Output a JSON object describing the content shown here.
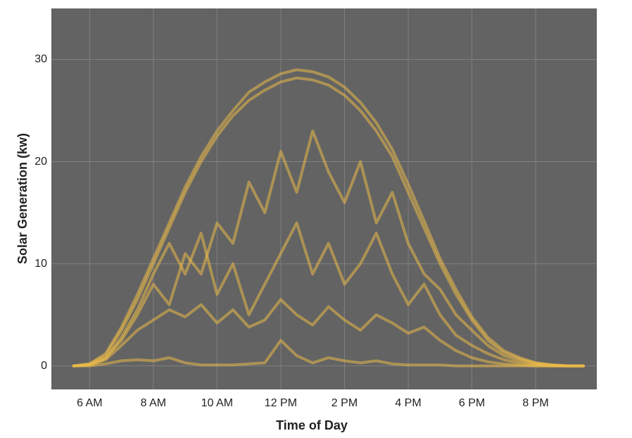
{
  "chart_data": {
    "type": "line",
    "x_label": "Time of Day",
    "y_label": "Solar Generation (kw)",
    "x": [
      5.5,
      6,
      6.5,
      7,
      7.5,
      8,
      8.5,
      9,
      9.5,
      10,
      10.5,
      11,
      11.5,
      12,
      12.5,
      13,
      13.5,
      14,
      14.5,
      15,
      15.5,
      16,
      16.5,
      17,
      17.5,
      18,
      18.5,
      19,
      19.5,
      20,
      20.5,
      21,
      21.5
    ],
    "series": [
      {
        "color": "#e9b949",
        "values": [
          0,
          0.2,
          1,
          3.5,
          6.5,
          10,
          13.5,
          17,
          20,
          22.5,
          24.5,
          26,
          27,
          27.8,
          28.2,
          28,
          27.5,
          26.5,
          25,
          23,
          20.5,
          17,
          13.5,
          10,
          7,
          4.5,
          2.5,
          1.3,
          0.7,
          0.3,
          0.1,
          0,
          0
        ]
      },
      {
        "color": "#e9b949",
        "values": [
          0,
          0.2,
          1.2,
          3.8,
          7,
          10.5,
          14,
          17.5,
          20.5,
          23,
          25,
          26.8,
          27.8,
          28.6,
          29,
          28.8,
          28.3,
          27.3,
          25.8,
          23.8,
          21.2,
          17.8,
          14.2,
          10.5,
          7.5,
          4.8,
          2.8,
          1.5,
          0.8,
          0.3,
          0.1,
          0,
          0
        ]
      },
      {
        "color": "#e9b949",
        "values": [
          0,
          0.1,
          0.6,
          2,
          3.5,
          4.5,
          5.5,
          4.8,
          6,
          4.2,
          5.5,
          3.8,
          4.5,
          6.5,
          5,
          4,
          5.8,
          4.5,
          3.5,
          5,
          4.2,
          3.2,
          3.8,
          2.5,
          1.5,
          0.8,
          0.4,
          0.2,
          0.1,
          0,
          0,
          0,
          0
        ]
      },
      {
        "color": "#e9b949",
        "values": [
          0,
          0,
          0.2,
          0.5,
          0.6,
          0.5,
          0.8,
          0.3,
          0.1,
          0.1,
          0.1,
          0.2,
          0.3,
          2.5,
          1,
          0.3,
          0.8,
          0.5,
          0.3,
          0.5,
          0.2,
          0.1,
          0.1,
          0.1,
          0,
          0,
          0,
          0,
          0,
          0,
          0,
          0,
          0
        ]
      },
      {
        "color": "#e9b949",
        "values": [
          0,
          0.1,
          0.8,
          2.5,
          5,
          8,
          6,
          11,
          9,
          14,
          12,
          18,
          15,
          21,
          17,
          23,
          19,
          16,
          20,
          14,
          17,
          12,
          9,
          7.5,
          5,
          3.5,
          2,
          1,
          0.5,
          0.2,
          0.1,
          0,
          0
        ]
      },
      {
        "color": "#e9b949",
        "values": [
          0,
          0.1,
          0.7,
          2.8,
          5.5,
          9,
          12,
          9,
          13,
          7,
          10,
          5,
          8,
          11,
          14,
          9,
          12,
          8,
          10,
          13,
          9,
          6,
          8,
          5,
          3,
          2,
          1.2,
          0.6,
          0.3,
          0.1,
          0,
          0,
          0
        ]
      }
    ],
    "xlim": [
      4.8,
      21.92
    ],
    "ylim": [
      -2.3,
      35
    ],
    "xticks": [
      {
        "value": 6,
        "label": "6 AM"
      },
      {
        "value": 8,
        "label": "8 AM"
      },
      {
        "value": 10,
        "label": "10 AM"
      },
      {
        "value": 12,
        "label": "12 PM"
      },
      {
        "value": 14,
        "label": "2 PM"
      },
      {
        "value": 16,
        "label": "4 PM"
      },
      {
        "value": 18,
        "label": "6 PM"
      },
      {
        "value": 20,
        "label": "8 PM"
      }
    ],
    "yticks": [
      0,
      10,
      20,
      30
    ],
    "grid": true
  }
}
